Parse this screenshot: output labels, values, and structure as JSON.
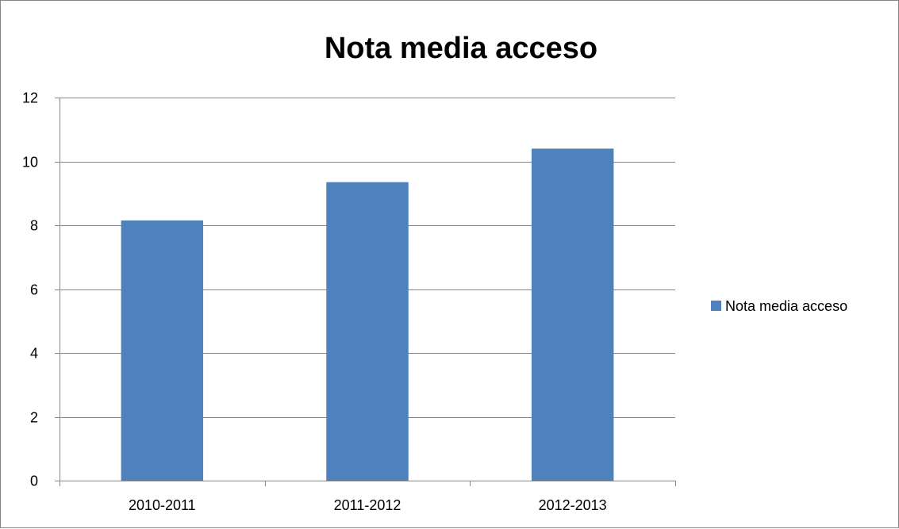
{
  "chart_data": {
    "type": "bar",
    "title": "Nota media acceso",
    "categories": [
      "2010-2011",
      "2011-2012",
      "2012-2013"
    ],
    "series": [
      {
        "name": "Nota media acceso",
        "values": [
          8.15,
          9.35,
          10.4
        ],
        "color": "#4F81BD"
      }
    ],
    "ylim": [
      0,
      12
    ],
    "yticks": [
      0,
      2,
      4,
      6,
      8,
      10,
      12
    ],
    "ytick_labels": [
      "0",
      "2",
      "4",
      "6",
      "8",
      "10",
      "12"
    ],
    "grid": true,
    "legend": "right"
  }
}
